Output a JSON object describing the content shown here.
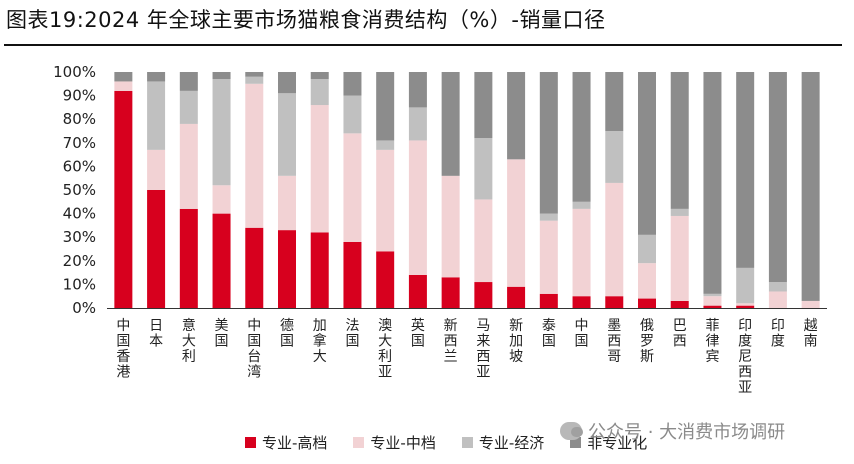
{
  "title": "图表19:2024 年全球主要市场猫粮食消费结构（%）-销量口径",
  "watermark": "公众号 · 大消费市场调研",
  "chart_data": {
    "type": "bar",
    "stacked": true,
    "ylim": [
      0,
      100
    ],
    "yticks": [
      "0%",
      "10%",
      "20%",
      "30%",
      "40%",
      "50%",
      "60%",
      "70%",
      "80%",
      "90%",
      "100%"
    ],
    "categories": [
      "中国香港",
      "日本",
      "意大利",
      "美国",
      "中国台湾",
      "德国",
      "加拿大",
      "法国",
      "澳大利亚",
      "英国",
      "新西兰",
      "马来西亚",
      "新加坡",
      "泰国",
      "中国",
      "墨西哥",
      "俄罗斯",
      "巴西",
      "菲律宾",
      "印度尼西亚",
      "印度",
      "越南"
    ],
    "series": [
      {
        "name": "专业-高档",
        "color": "#d7001e",
        "values": [
          92,
          50,
          42,
          40,
          34,
          33,
          32,
          28,
          24,
          14,
          13,
          11,
          9,
          6,
          5,
          5,
          4,
          3,
          1,
          1,
          0,
          0
        ]
      },
      {
        "name": "专业-中档",
        "color": "#f2d2d4",
        "values": [
          4,
          17,
          36,
          12,
          61,
          23,
          54,
          46,
          43,
          57,
          43,
          35,
          54,
          31,
          37,
          48,
          15,
          36,
          4,
          1,
          7,
          3
        ]
      },
      {
        "name": "专业-经济",
        "color": "#c0c0c0",
        "values": [
          0,
          29,
          14,
          45,
          3,
          35,
          11,
          16,
          4,
          14,
          0,
          26,
          0,
          3,
          3,
          22,
          12,
          3,
          1,
          15,
          4,
          0
        ]
      },
      {
        "name": "非专业化",
        "color": "#8c8c8c",
        "values": [
          4,
          4,
          8,
          3,
          2,
          9,
          3,
          10,
          29,
          15,
          44,
          28,
          37,
          60,
          55,
          25,
          69,
          58,
          94,
          83,
          89,
          97
        ]
      }
    ]
  }
}
